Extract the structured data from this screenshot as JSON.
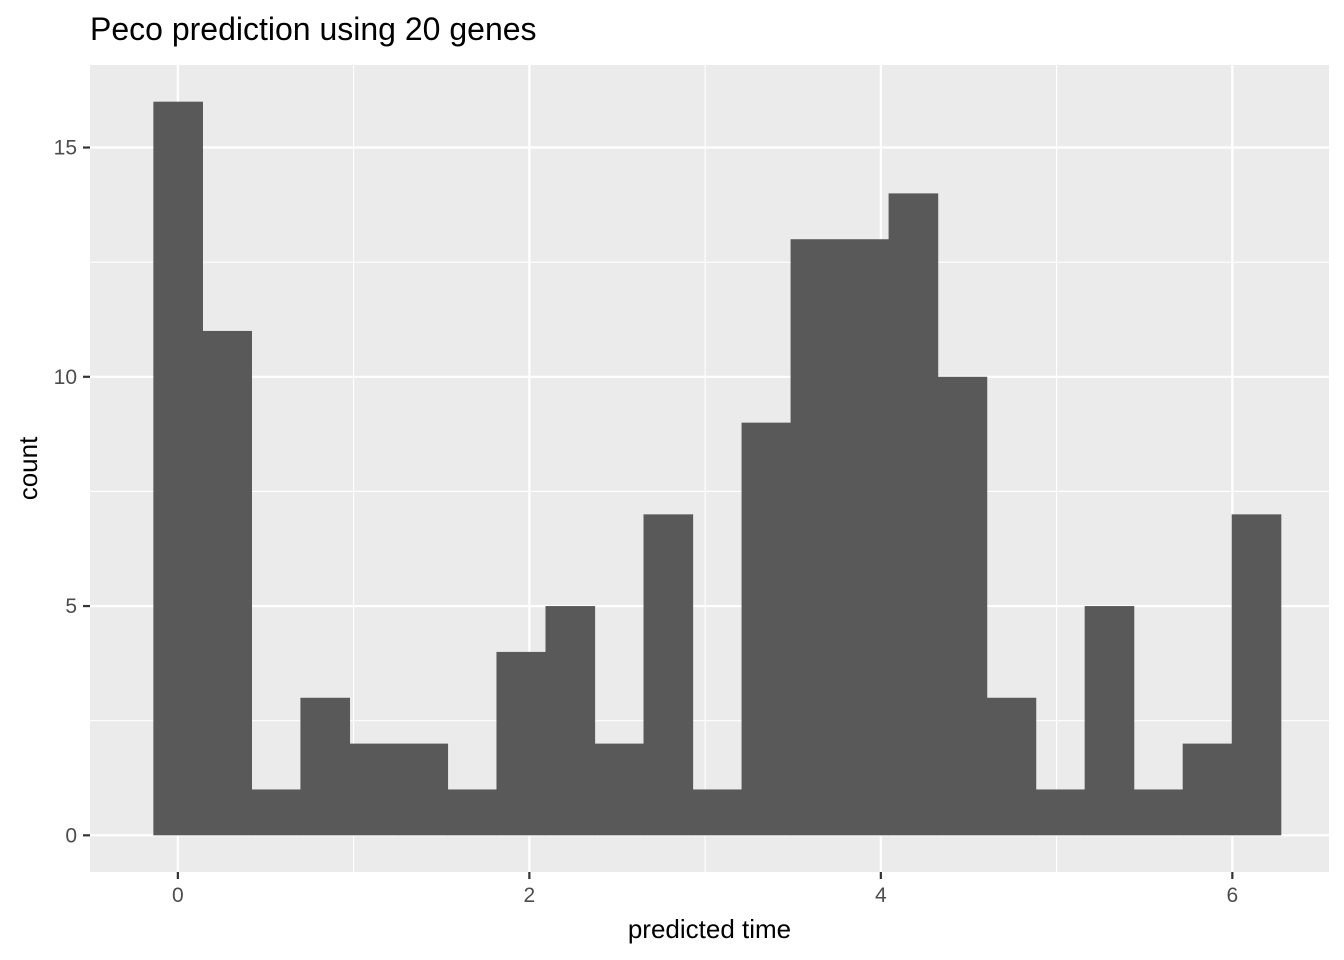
{
  "chart_data": {
    "type": "histogram",
    "title": "Peco prediction using 20 genes",
    "xlabel": "predicted time",
    "ylabel": "count",
    "xlim": [
      -0.5,
      6.55
    ],
    "ylim": [
      -0.8,
      16.8
    ],
    "x_ticks": [
      0,
      2,
      4,
      6
    ],
    "y_ticks": [
      0,
      5,
      10,
      15
    ],
    "grid": true,
    "legend": "none",
    "bin_width": 0.2789,
    "bins": [
      {
        "start": -0.1395,
        "end": 0.1395,
        "count": 16
      },
      {
        "start": 0.1395,
        "end": 0.4184,
        "count": 11
      },
      {
        "start": 0.4184,
        "end": 0.6973,
        "count": 1
      },
      {
        "start": 0.6973,
        "end": 0.9762,
        "count": 3
      },
      {
        "start": 0.9762,
        "end": 1.2551,
        "count": 2
      },
      {
        "start": 1.2551,
        "end": 1.534,
        "count": 2
      },
      {
        "start": 1.534,
        "end": 1.8129,
        "count": 1
      },
      {
        "start": 1.8129,
        "end": 2.0918,
        "count": 4
      },
      {
        "start": 2.0918,
        "end": 2.3707,
        "count": 5
      },
      {
        "start": 2.3707,
        "end": 2.6496,
        "count": 2
      },
      {
        "start": 2.6496,
        "end": 2.9285,
        "count": 7
      },
      {
        "start": 2.9285,
        "end": 3.2074,
        "count": 1
      },
      {
        "start": 3.2074,
        "end": 3.4863,
        "count": 9
      },
      {
        "start": 3.4863,
        "end": 3.7652,
        "count": 13
      },
      {
        "start": 3.7652,
        "end": 4.0441,
        "count": 13
      },
      {
        "start": 4.0441,
        "end": 4.323,
        "count": 14
      },
      {
        "start": 4.323,
        "end": 4.6019,
        "count": 10
      },
      {
        "start": 4.6019,
        "end": 4.8808,
        "count": 3
      },
      {
        "start": 4.8808,
        "end": 5.1597,
        "count": 1
      },
      {
        "start": 5.1597,
        "end": 5.4386,
        "count": 5
      },
      {
        "start": 5.4386,
        "end": 5.7175,
        "count": 1
      },
      {
        "start": 5.7175,
        "end": 5.9964,
        "count": 2
      },
      {
        "start": 5.9964,
        "end": 6.2753,
        "count": 7
      }
    ],
    "colors": {
      "bar_fill": "#595959",
      "panel_background": "#ebebeb",
      "grid_line": "#ffffff",
      "tick_label": "#4d4d4d",
      "tick_mark": "#333333"
    }
  }
}
